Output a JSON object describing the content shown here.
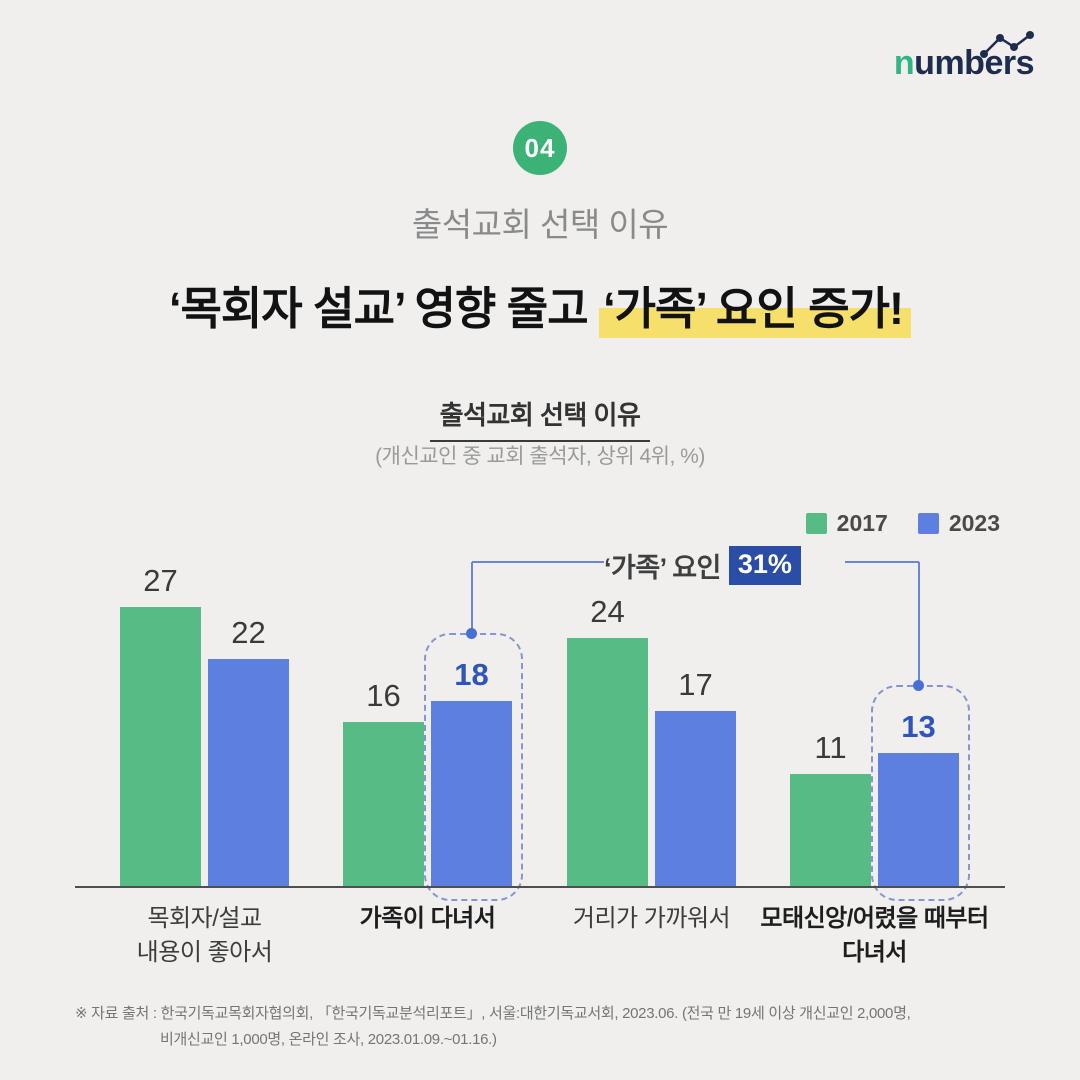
{
  "colors": {
    "background": "#f0efed",
    "green": "#57bb86",
    "blue": "#5d80e0",
    "yellow_highlight": "#f6df6b",
    "annotation_badge_bg": "#2b4da6",
    "highlighted_number": "#2f55b8",
    "logo_green": "#2fb586",
    "logo_navy": "#1e2c4e",
    "badge_bg": "#3cb277"
  },
  "logo": {
    "first_letter": "n",
    "rest": "umbers"
  },
  "badge": {
    "label": "04"
  },
  "header": {
    "kicker": "출석교회 선택 이유",
    "headline_plain": "‘목회자 설교’ 영향 줄고 ",
    "headline_highlighted": "‘가족’ 요인 증가!"
  },
  "chart": {
    "title": "출석교회 선택 이유",
    "subtitle": "(개신교인 중 교회 출석자, 상위 4위, %)",
    "annotation_text": "‘가족’ 요인",
    "annotation_badge": "31%"
  },
  "chart_data": {
    "type": "bar",
    "title": "출석교회 선택 이유",
    "subtitle": "(개신교인 중 교회 출석자, 상위 4위, %)",
    "categories": [
      "목회자/설교 내용이 좋아서",
      "가족이 다녀서",
      "거리가 가까워서",
      "모태신앙/어렸을 때부터 다녀서"
    ],
    "category_label_lines": [
      [
        "목회자/설교",
        "내용이 좋아서"
      ],
      [
        "가족이 다녀서"
      ],
      [
        "거리가 가까워서"
      ],
      [
        "모태신앙/어렸을 때부터",
        "다녀서"
      ]
    ],
    "series": [
      {
        "name": "2017",
        "color": "#57bb86",
        "values": [
          27,
          16,
          24,
          11
        ]
      },
      {
        "name": "2023",
        "color": "#5d80e0",
        "values": [
          22,
          18,
          17,
          13
        ]
      }
    ],
    "ylim": [
      0,
      30
    ],
    "grid": false,
    "legend_position": "top-right",
    "highlighted_series": "2023",
    "highlighted_category_indices": [
      1,
      3
    ],
    "annotation": "‘가족’ 요인 31%"
  },
  "footnote": {
    "line1": "※ 자료 출처 : 한국기독교목회자협의회, 「한국기독교분석리포트」, 서울:대한기독교서회, 2023.06. (전국 만 19세 이상 개신교인 2,000명,",
    "line2": "비개신교인 1,000명, 온라인 조사, 2023.01.09.~01.16.)"
  }
}
